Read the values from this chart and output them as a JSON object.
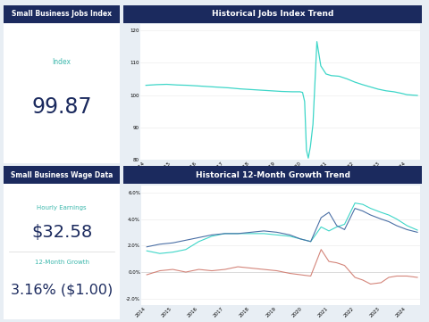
{
  "bg_color": "#e8eef4",
  "panel_bg": "#ffffff",
  "header_bg": "#1b2a5e",
  "header_text": "#ffffff",
  "accent_color": "#3dd6c8",
  "blue_color": "#4a6fa5",
  "red_color": "#d4857a",
  "label_color": "#3db8ad",
  "value_color": "#1b2a5e",
  "jobs_index_title": "Small Business Jobs Index",
  "jobs_index_label": "Index",
  "jobs_index_value": "99.87",
  "wage_title": "Small Business Wage Data",
  "hourly_earnings_label": "Hourly Earnings",
  "hourly_earnings_value": "$32.58",
  "growth_label": "12-Month Growth",
  "growth_value": "3.16% ($1.00)",
  "hist_jobs_title": "Historical Jobs Index Trend",
  "hist_growth_title": "Historical 12-Month Growth Trend",
  "jobs_x": [
    2014,
    2014.4,
    2014.8,
    2015.2,
    2015.6,
    2016,
    2016.4,
    2016.8,
    2017.2,
    2017.6,
    2018,
    2018.4,
    2018.8,
    2019.2,
    2019.6,
    2019.9,
    2020.0,
    2020.08,
    2020.15,
    2020.22,
    2020.3,
    2020.4,
    2020.55,
    2020.7,
    2020.9,
    2021.1,
    2021.4,
    2021.7,
    2022.0,
    2022.3,
    2022.6,
    2022.9,
    2023.2,
    2023.5,
    2023.8,
    2024.0,
    2024.4
  ],
  "jobs_y": [
    103.0,
    103.2,
    103.3,
    103.1,
    103.0,
    102.8,
    102.6,
    102.4,
    102.2,
    101.9,
    101.7,
    101.5,
    101.3,
    101.1,
    101.0,
    101.0,
    100.8,
    98.0,
    83.0,
    80.5,
    84.0,
    91.0,
    116.5,
    109.0,
    106.5,
    106.0,
    105.8,
    105.0,
    104.0,
    103.2,
    102.5,
    101.8,
    101.3,
    101.0,
    100.5,
    100.1,
    99.87
  ],
  "growth_x": [
    2014,
    2014.5,
    2015,
    2015.5,
    2016,
    2016.5,
    2017,
    2017.5,
    2018,
    2018.5,
    2019,
    2019.5,
    2019.9,
    2020.3,
    2020.7,
    2021.0,
    2021.3,
    2021.6,
    2022.0,
    2022.3,
    2022.6,
    2023.0,
    2023.3,
    2023.6,
    2024.0,
    2024.4
  ],
  "hourly_earnings_y": [
    1.6,
    1.4,
    1.5,
    1.7,
    2.3,
    2.7,
    2.9,
    2.9,
    2.9,
    2.9,
    2.8,
    2.7,
    2.5,
    2.3,
    3.4,
    3.1,
    3.4,
    3.6,
    5.2,
    5.1,
    4.8,
    4.5,
    4.3,
    4.0,
    3.5,
    3.16
  ],
  "weekly_earnings_y": [
    1.9,
    2.1,
    2.2,
    2.4,
    2.6,
    2.8,
    2.9,
    2.9,
    3.0,
    3.1,
    3.0,
    2.8,
    2.5,
    2.3,
    4.1,
    4.5,
    3.5,
    3.2,
    4.8,
    4.6,
    4.3,
    4.0,
    3.8,
    3.5,
    3.2,
    3.0
  ],
  "weekly_hours_y": [
    -0.2,
    0.1,
    0.2,
    0.0,
    0.2,
    0.1,
    0.2,
    0.4,
    0.3,
    0.2,
    0.1,
    -0.1,
    -0.2,
    -0.3,
    1.7,
    0.8,
    0.7,
    0.5,
    -0.4,
    -0.6,
    -0.9,
    -0.8,
    -0.4,
    -0.3,
    -0.3,
    -0.4
  ],
  "jobs_ylim": [
    80,
    122
  ],
  "jobs_yticks": [
    80,
    90,
    100,
    110,
    120
  ],
  "jobs_xticks": [
    2014,
    2015,
    2016,
    2017,
    2018,
    2019,
    2020,
    2021,
    2022,
    2023,
    2024
  ],
  "growth_ylim": [
    -2.5,
    6.5
  ],
  "growth_yticks": [
    -2.0,
    0.0,
    2.0,
    4.0,
    6.0
  ],
  "growth_xticks": [
    2014,
    2015,
    2016,
    2017,
    2018,
    2019,
    2020,
    2021,
    2022,
    2023,
    2024
  ]
}
